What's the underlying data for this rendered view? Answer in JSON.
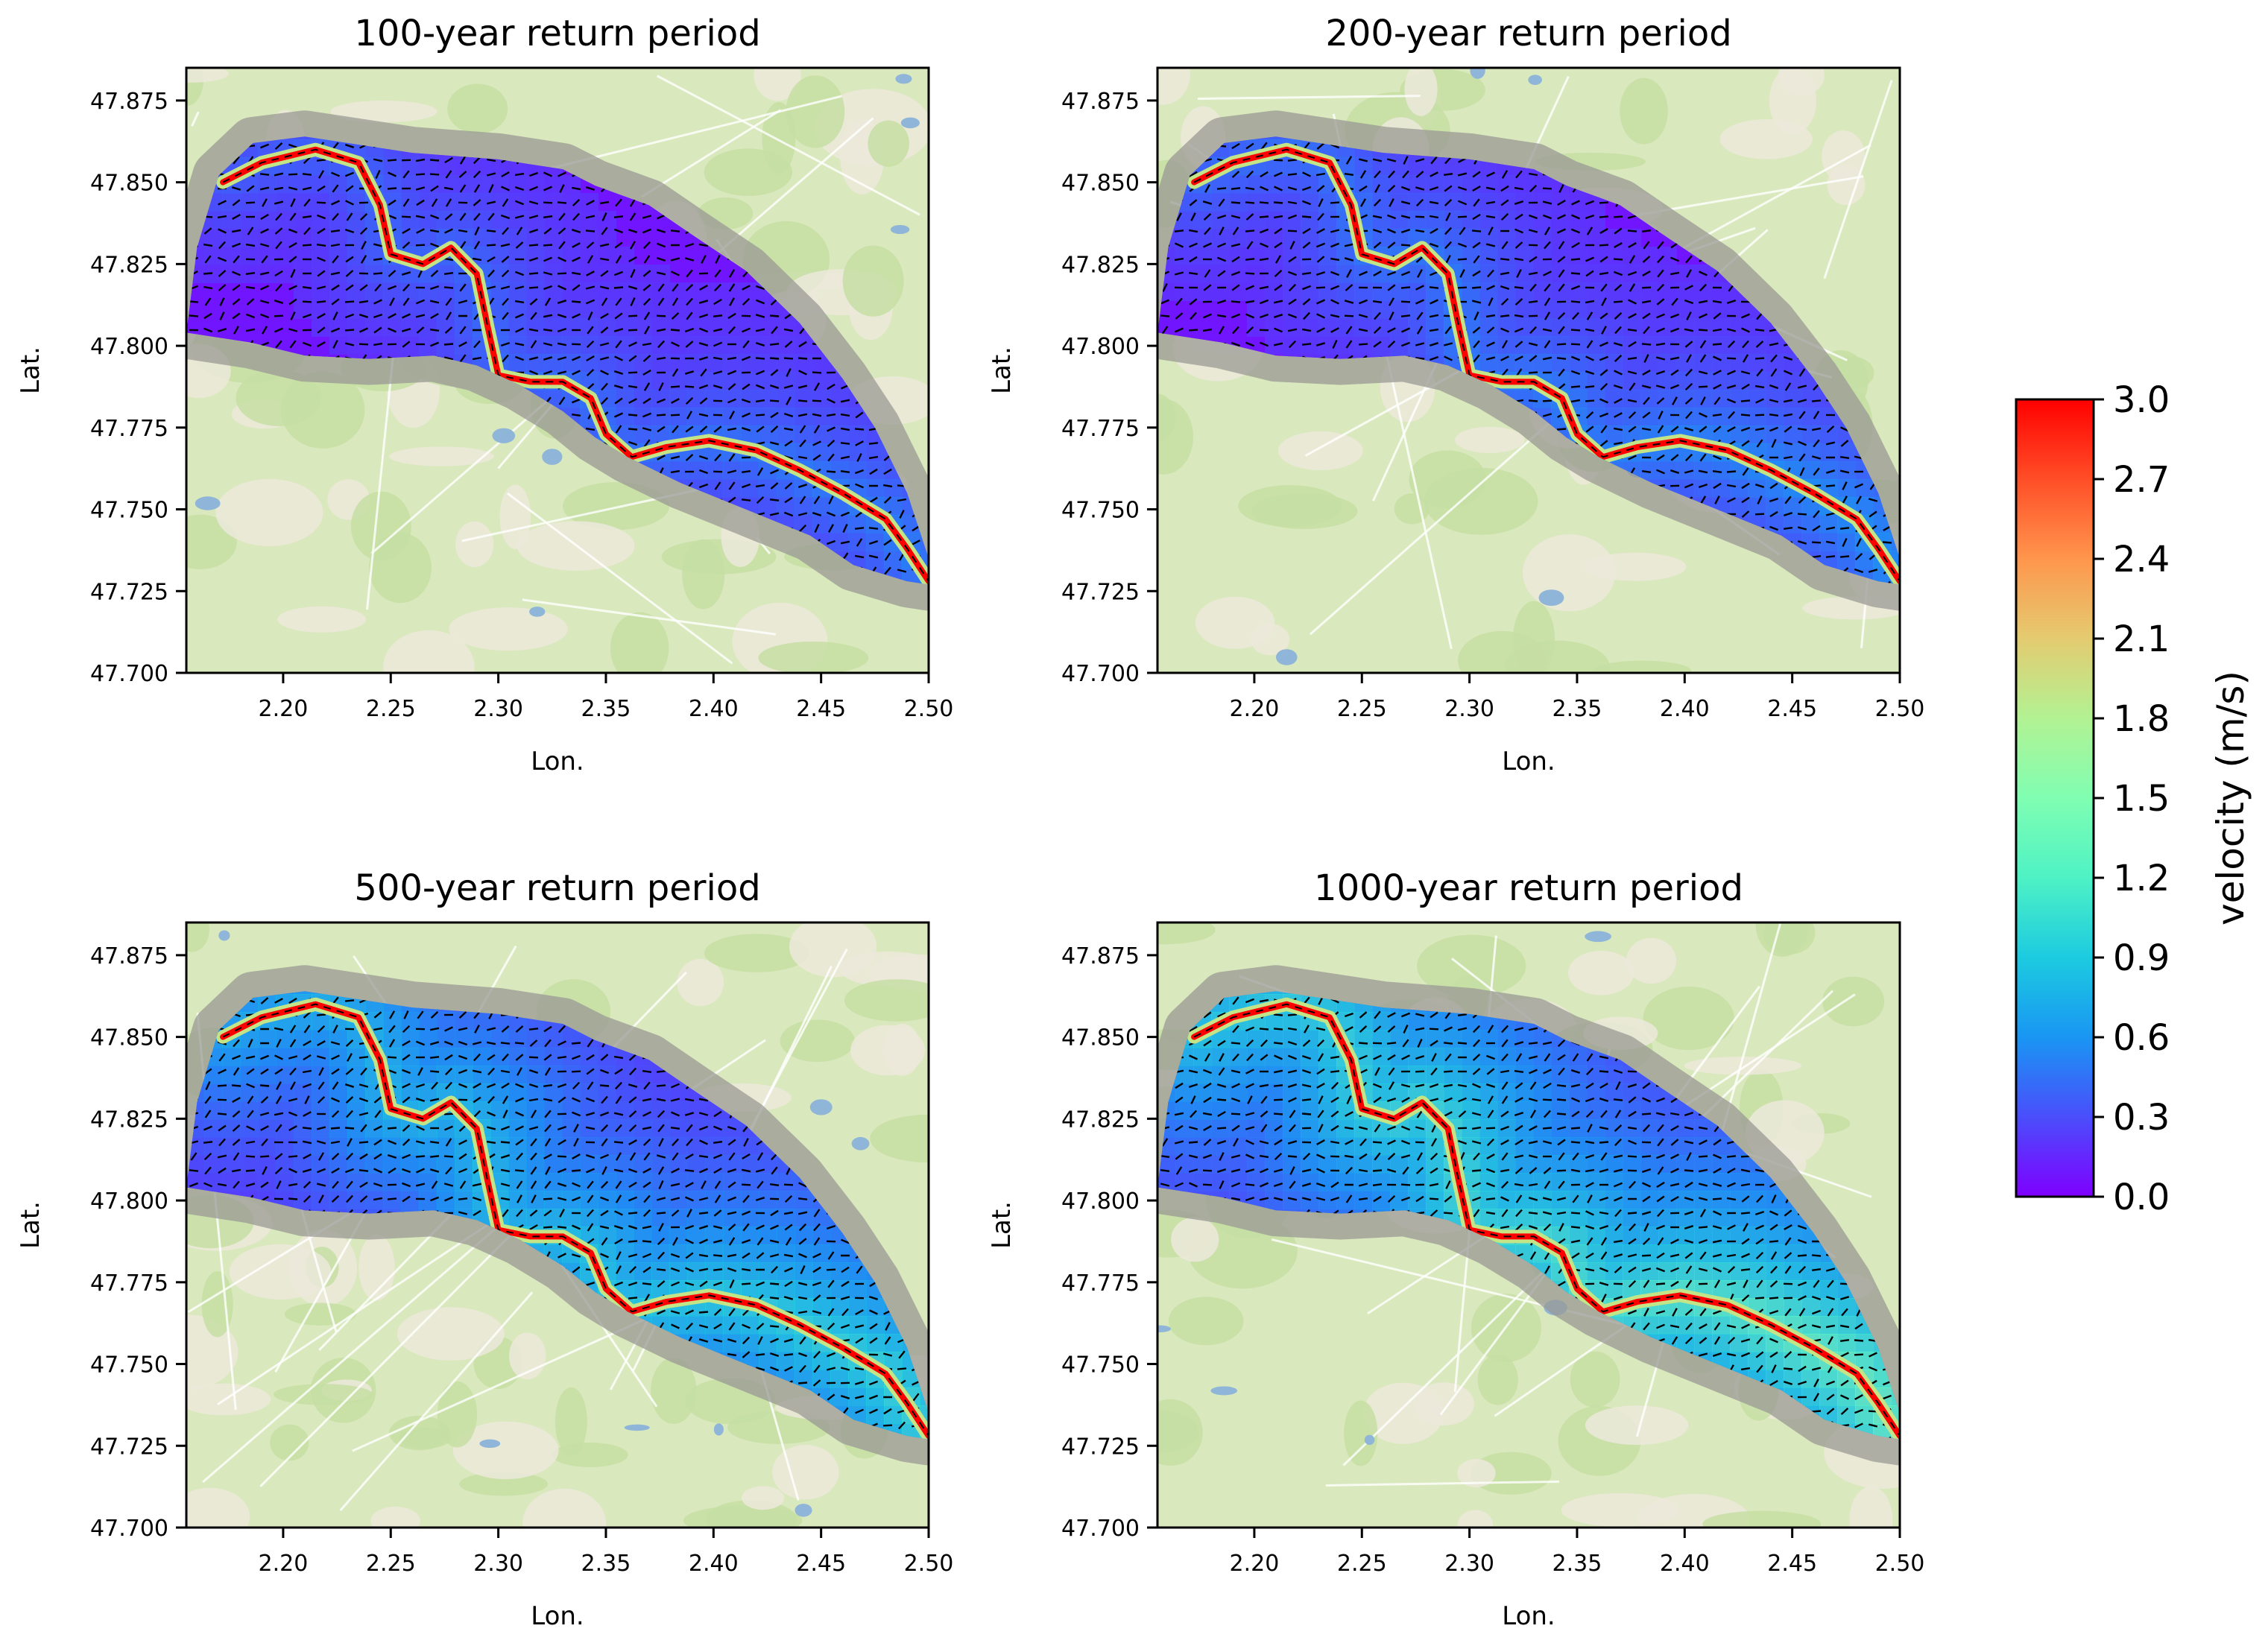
{
  "chart_data": [
    {
      "type": "heatmap",
      "title": "100-year return period",
      "xlabel": "Lon.",
      "ylabel": "Lat.",
      "xlim": [
        2.155,
        2.5
      ],
      "ylim": [
        47.7,
        47.885
      ],
      "xticks": [
        "2.20",
        "2.25",
        "2.30",
        "2.35",
        "2.40",
        "2.45",
        "2.50"
      ],
      "yticks": [
        "47.700",
        "47.725",
        "47.750",
        "47.775",
        "47.800",
        "47.825",
        "47.850",
        "47.875"
      ],
      "flow_scale": 0.25
    },
    {
      "type": "heatmap",
      "title": "200-year return period",
      "xlabel": "Lon.",
      "ylabel": "Lat.",
      "xlim": [
        2.155,
        2.5
      ],
      "ylim": [
        47.7,
        47.885
      ],
      "xticks": [
        "2.20",
        "2.25",
        "2.30",
        "2.35",
        "2.40",
        "2.45",
        "2.50"
      ],
      "yticks": [
        "47.700",
        "47.725",
        "47.750",
        "47.775",
        "47.800",
        "47.825",
        "47.850",
        "47.875"
      ],
      "flow_scale": 0.3
    },
    {
      "type": "heatmap",
      "title": "500-year return period",
      "xlabel": "Lon.",
      "ylabel": "Lat.",
      "xlim": [
        2.155,
        2.5
      ],
      "ylim": [
        47.7,
        47.885
      ],
      "xticks": [
        "2.20",
        "2.25",
        "2.30",
        "2.35",
        "2.40",
        "2.45",
        "2.50"
      ],
      "yticks": [
        "47.700",
        "47.725",
        "47.750",
        "47.775",
        "47.800",
        "47.825",
        "47.850",
        "47.875"
      ],
      "flow_scale": 0.55
    },
    {
      "type": "heatmap",
      "title": "1000-year return period",
      "xlabel": "Lon.",
      "ylabel": "Lat.",
      "xlim": [
        2.155,
        2.5
      ],
      "ylim": [
        47.7,
        47.885
      ],
      "xticks": [
        "2.20",
        "2.25",
        "2.30",
        "2.35",
        "2.40",
        "2.45",
        "2.50"
      ],
      "yticks": [
        "47.700",
        "47.725",
        "47.750",
        "47.775",
        "47.800",
        "47.825",
        "47.850",
        "47.875"
      ],
      "flow_scale": 0.7
    }
  ],
  "colorbar": {
    "label": "velocity (m/s)",
    "min": 0.0,
    "max": 3.0,
    "ticks": [
      "0.0",
      "0.3",
      "0.6",
      "0.9",
      "1.2",
      "1.5",
      "1.8",
      "2.1",
      "2.4",
      "2.7",
      "3.0"
    ],
    "colors": [
      "#7f00ff",
      "#4a4efb",
      "#1996f3",
      "#1ccbe0",
      "#4ef2c5",
      "#80feb2",
      "#b2f293",
      "#e4cb70",
      "#ff964d",
      "#ff4e27",
      "#ff0000"
    ]
  },
  "domain_polygon": [
    [
      2.155,
      47.804
    ],
    [
      2.16,
      47.83
    ],
    [
      2.17,
      47.852
    ],
    [
      2.186,
      47.862
    ],
    [
      2.21,
      47.864
    ],
    [
      2.26,
      47.859
    ],
    [
      2.3,
      47.857
    ],
    [
      2.33,
      47.854
    ],
    [
      2.345,
      47.849
    ],
    [
      2.37,
      47.843
    ],
    [
      2.39,
      47.834
    ],
    [
      2.415,
      47.823
    ],
    [
      2.44,
      47.807
    ],
    [
      2.46,
      47.79
    ],
    [
      2.475,
      47.775
    ],
    [
      2.49,
      47.755
    ],
    [
      2.5,
      47.735
    ],
    [
      2.5,
      47.727
    ],
    [
      2.49,
      47.728
    ],
    [
      2.465,
      47.733
    ],
    [
      2.445,
      47.742
    ],
    [
      2.415,
      47.75
    ],
    [
      2.385,
      47.758
    ],
    [
      2.36,
      47.766
    ],
    [
      2.345,
      47.772
    ],
    [
      2.33,
      47.78
    ],
    [
      2.31,
      47.788
    ],
    [
      2.29,
      47.794
    ],
    [
      2.27,
      47.797
    ],
    [
      2.24,
      47.796
    ],
    [
      2.21,
      47.797
    ],
    [
      2.185,
      47.801
    ],
    [
      2.155,
      47.804
    ]
  ],
  "river_path": [
    [
      2.172,
      47.85
    ],
    [
      2.19,
      47.856
    ],
    [
      2.215,
      47.86
    ],
    [
      2.235,
      47.856
    ],
    [
      2.245,
      47.843
    ],
    [
      2.25,
      47.828
    ],
    [
      2.265,
      47.825
    ],
    [
      2.278,
      47.83
    ],
    [
      2.29,
      47.822
    ],
    [
      2.295,
      47.806
    ],
    [
      2.3,
      47.791
    ],
    [
      2.315,
      47.789
    ],
    [
      2.33,
      47.789
    ],
    [
      2.343,
      47.784
    ],
    [
      2.35,
      47.773
    ],
    [
      2.362,
      47.766
    ],
    [
      2.378,
      47.769
    ],
    [
      2.398,
      47.771
    ],
    [
      2.42,
      47.768
    ],
    [
      2.44,
      47.762
    ],
    [
      2.46,
      47.755
    ],
    [
      2.48,
      47.747
    ],
    [
      2.49,
      47.738
    ],
    [
      2.5,
      47.728
    ]
  ]
}
